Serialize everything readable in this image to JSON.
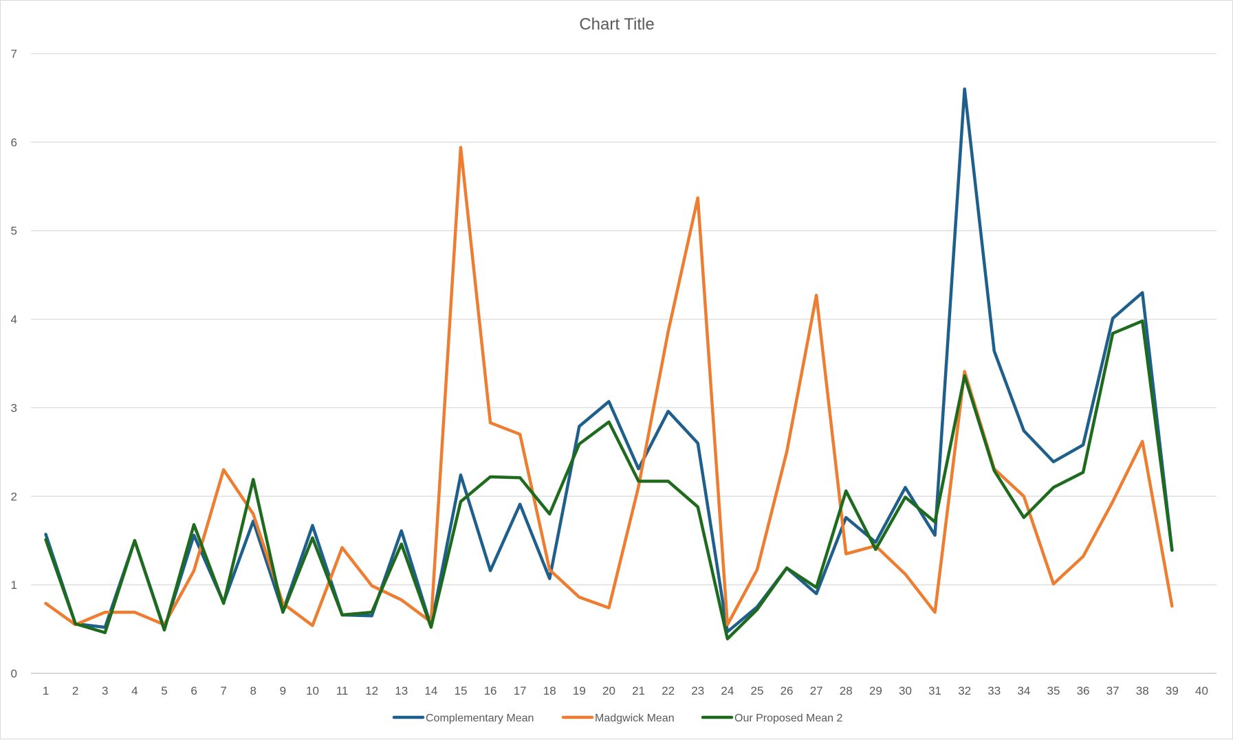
{
  "chart_data": {
    "type": "line",
    "title": "Chart Title",
    "xlabel": "",
    "ylabel": "",
    "categories": [
      "1",
      "2",
      "3",
      "4",
      "5",
      "6",
      "7",
      "8",
      "9",
      "10",
      "11",
      "12",
      "13",
      "14",
      "15",
      "16",
      "17",
      "18",
      "19",
      "20",
      "21",
      "22",
      "23",
      "24",
      "25",
      "26",
      "27",
      "28",
      "29",
      "30",
      "31",
      "32",
      "33",
      "34",
      "35",
      "36",
      "37",
      "38",
      "39",
      "40"
    ],
    "ylim": [
      0,
      7
    ],
    "yticks": [
      "0",
      "1",
      "2",
      "3",
      "4",
      "5",
      "6",
      "7"
    ],
    "grid": true,
    "legend_position": "bottom",
    "series": [
      {
        "name": "Complementary Mean",
        "color": "#1f5f8b",
        "values": [
          1.57,
          0.56,
          0.52,
          1.5,
          0.5,
          1.56,
          0.8,
          1.72,
          0.7,
          1.67,
          0.66,
          0.65,
          1.61,
          0.53,
          2.24,
          1.16,
          1.91,
          1.07,
          2.79,
          3.07,
          2.31,
          2.96,
          2.6,
          0.47,
          0.75,
          1.19,
          0.9,
          1.76,
          1.48,
          2.1,
          1.56,
          6.6,
          3.64,
          2.74,
          2.39,
          2.58,
          4.01,
          4.3,
          1.39,
          null
        ]
      },
      {
        "name": "Madgwick Mean",
        "color": "#ed7d31",
        "values": [
          0.79,
          0.55,
          0.69,
          0.69,
          0.55,
          1.16,
          2.3,
          1.8,
          0.79,
          0.54,
          1.42,
          0.99,
          0.83,
          0.58,
          5.94,
          2.83,
          2.7,
          1.17,
          0.86,
          0.74,
          2.11,
          3.86,
          5.37,
          0.55,
          1.17,
          2.5,
          4.27,
          1.35,
          1.44,
          1.12,
          0.69,
          3.41,
          2.31,
          2.0,
          1.01,
          1.32,
          1.94,
          2.62,
          0.76,
          null
        ]
      },
      {
        "name": "Our Proposed Mean 2",
        "color": "#1e6b1e",
        "values": [
          1.51,
          0.56,
          0.46,
          1.5,
          0.49,
          1.68,
          0.79,
          2.19,
          0.69,
          1.53,
          0.66,
          0.69,
          1.46,
          0.52,
          1.94,
          2.22,
          2.21,
          1.8,
          2.59,
          2.84,
          2.17,
          2.17,
          1.88,
          0.39,
          0.72,
          1.19,
          0.97,
          2.06,
          1.4,
          1.99,
          1.71,
          3.36,
          2.29,
          1.76,
          2.1,
          2.27,
          3.84,
          3.98,
          1.39,
          null
        ]
      }
    ]
  }
}
